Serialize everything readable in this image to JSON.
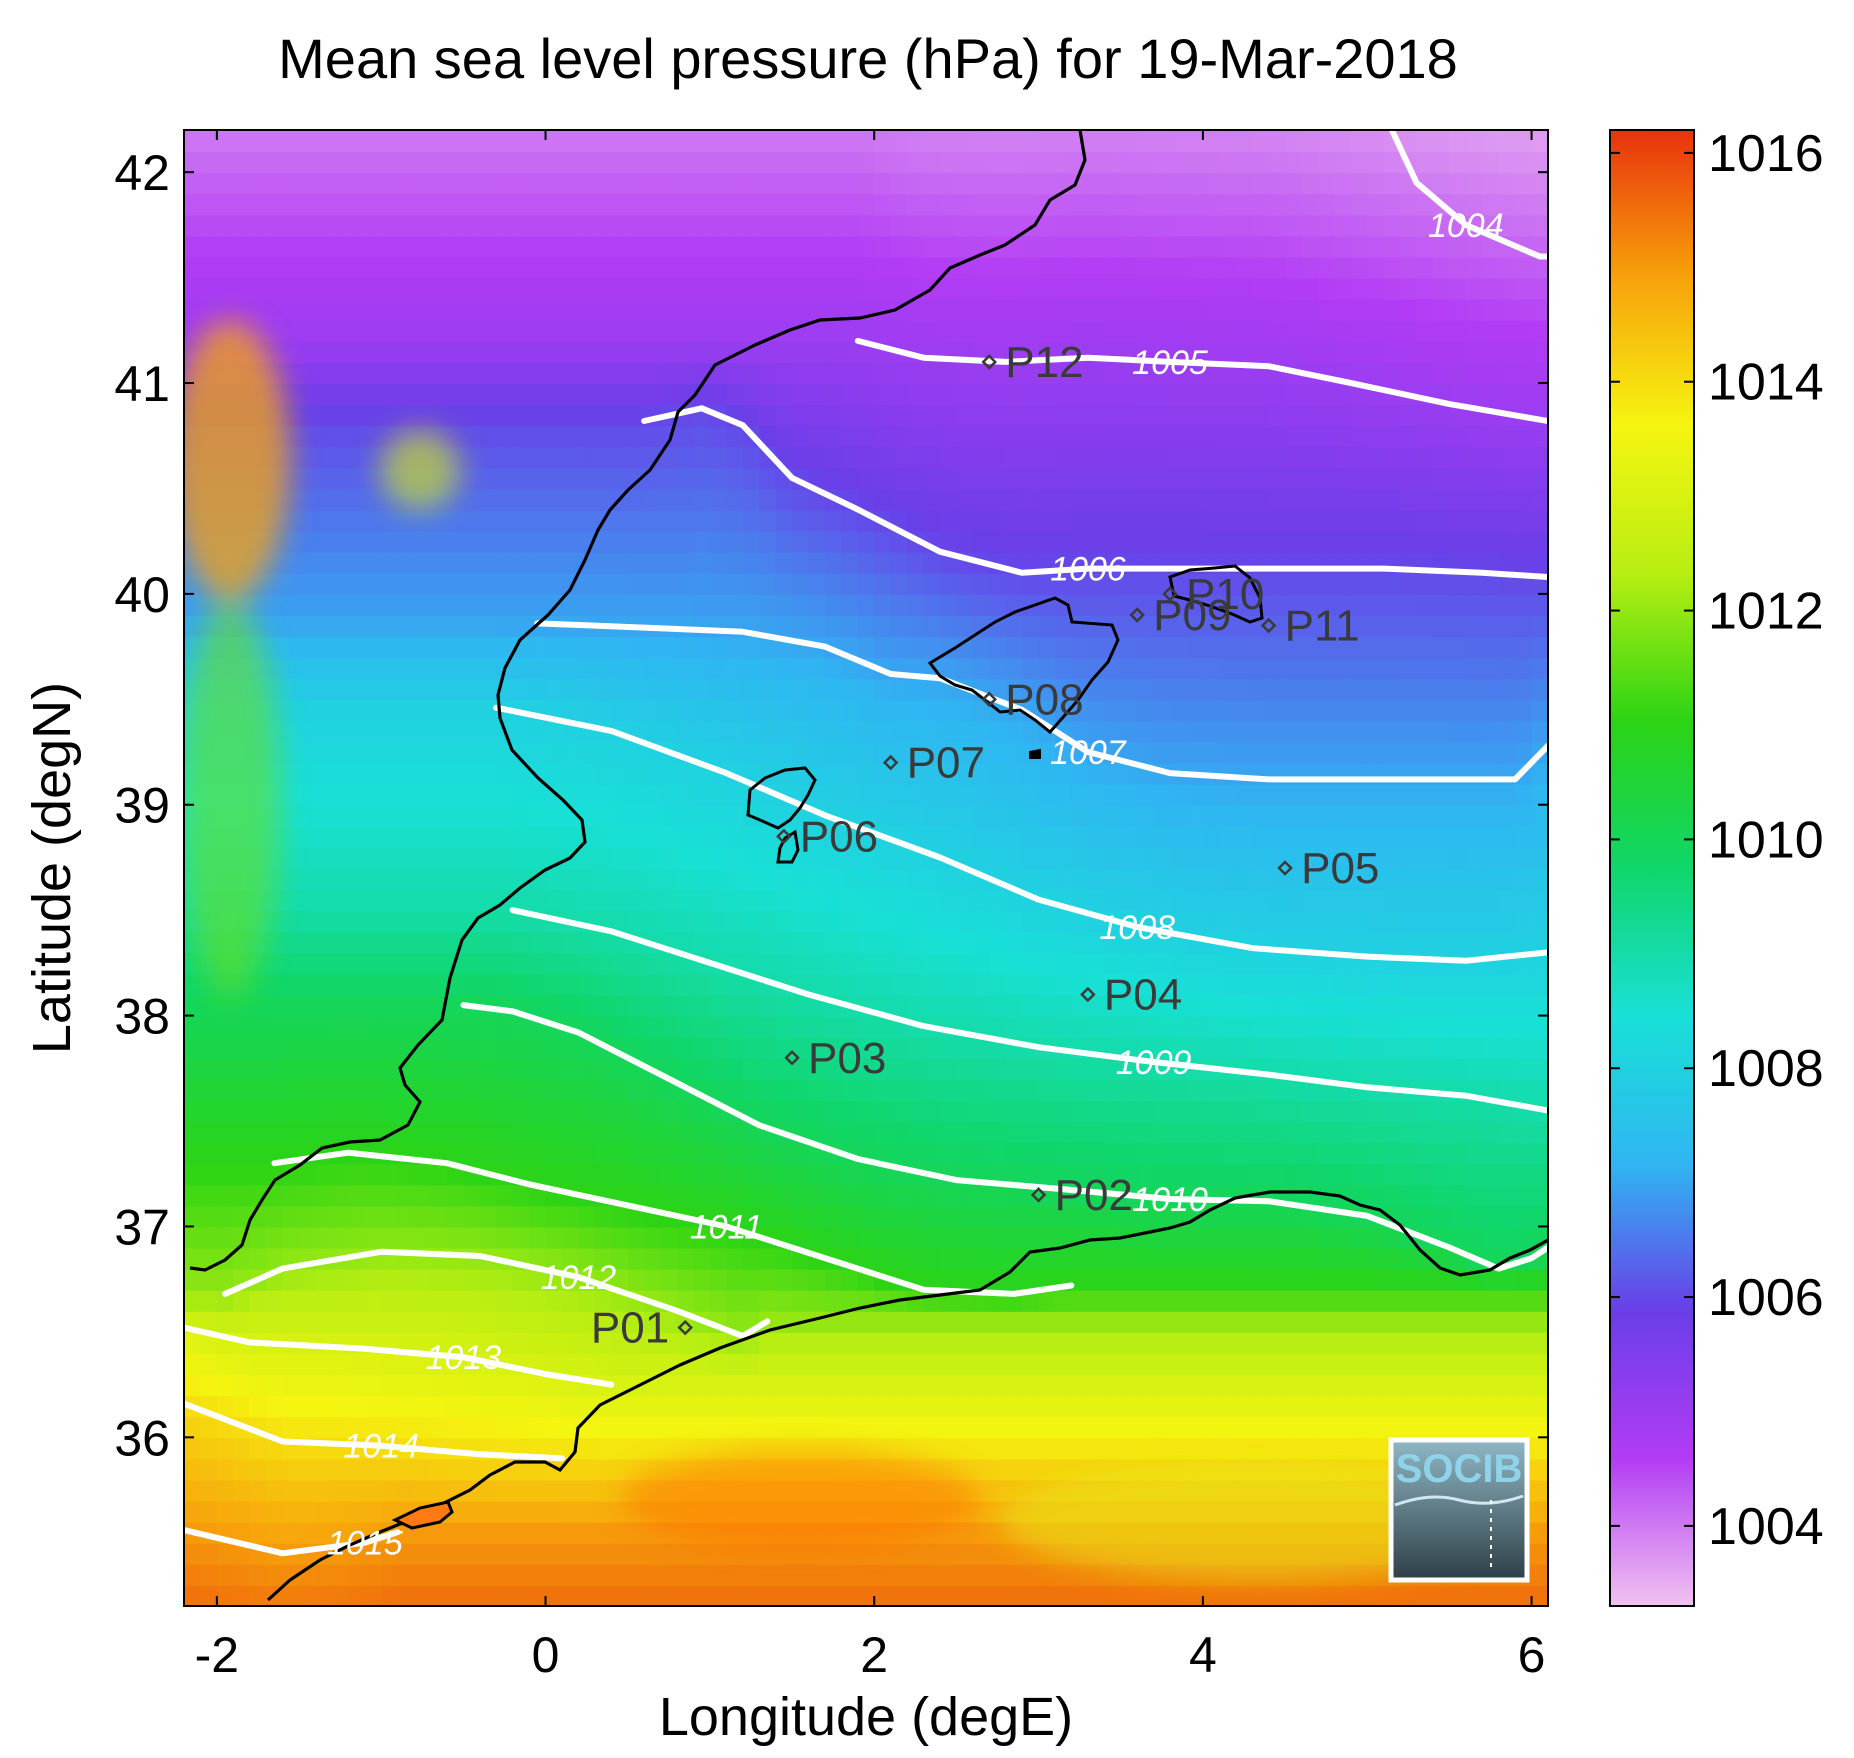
{
  "chart_data": {
    "type": "heatmap",
    "title": "Mean sea level pressure (hPa) for 19-Mar-2018",
    "xlabel": "Longitude (degE)",
    "ylabel": "Latitude (degN)",
    "xlim": [
      -2.2,
      6.1
    ],
    "ylim": [
      35.2,
      42.2
    ],
    "x_ticks": [
      "-2",
      "0",
      "2",
      "4",
      "6"
    ],
    "x_tick_values": [
      -2,
      0,
      2,
      4,
      6
    ],
    "y_ticks": [
      "36",
      "37",
      "38",
      "39",
      "40",
      "41",
      "42"
    ],
    "y_tick_values": [
      36,
      37,
      38,
      39,
      40,
      41,
      42
    ],
    "colorbar": {
      "min": 1003.3,
      "max": 1016.2,
      "ticks": [
        "1004",
        "1006",
        "1008",
        "1010",
        "1012",
        "1014",
        "1016"
      ],
      "tick_values": [
        1004,
        1006,
        1008,
        1010,
        1012,
        1014,
        1016
      ],
      "colormap_stops": [
        "#f0c2f0",
        "#b23cf5",
        "#6a3ee8",
        "#2fb6f2",
        "#18e0d6",
        "#10d66a",
        "#2cd414",
        "#b8ee12",
        "#f5f510",
        "#f7a20b",
        "#e8320c"
      ]
    },
    "contours": [
      {
        "level": 1004,
        "label": "1004",
        "points": [
          [
            5.15,
            42.2
          ],
          [
            5.3,
            41.95
          ],
          [
            5.6,
            41.75
          ],
          [
            6.05,
            41.6
          ],
          [
            6.1,
            41.6
          ]
        ]
      },
      {
        "level": 1005,
        "label": "1005",
        "points": [
          [
            1.9,
            41.2
          ],
          [
            2.3,
            41.12
          ],
          [
            2.8,
            41.1
          ],
          [
            3.3,
            41.12
          ],
          [
            3.8,
            41.1
          ],
          [
            4.4,
            41.08
          ],
          [
            4.9,
            41.0
          ],
          [
            5.5,
            40.9
          ],
          [
            6.1,
            40.82
          ]
        ]
      },
      {
        "level": 1006,
        "label": "1006",
        "points": [
          [
            0.6,
            40.82
          ],
          [
            0.95,
            40.88
          ],
          [
            1.2,
            40.8
          ],
          [
            1.5,
            40.55
          ],
          [
            1.9,
            40.4
          ],
          [
            2.4,
            40.2
          ],
          [
            2.9,
            40.1
          ],
          [
            3.3,
            40.12
          ],
          [
            3.8,
            40.12
          ],
          [
            4.4,
            40.12
          ],
          [
            5.1,
            40.12
          ],
          [
            5.7,
            40.1
          ],
          [
            6.1,
            40.08
          ]
        ]
      },
      {
        "level": 1007,
        "label": "1007",
        "points": [
          [
            -0.05,
            39.86
          ],
          [
            0.6,
            39.84
          ],
          [
            1.2,
            39.82
          ],
          [
            1.7,
            39.75
          ],
          [
            2.1,
            39.62
          ],
          [
            2.4,
            39.6
          ],
          [
            2.9,
            39.45
          ],
          [
            3.3,
            39.25
          ],
          [
            3.8,
            39.15
          ],
          [
            4.4,
            39.12
          ],
          [
            5.0,
            39.12
          ],
          [
            5.6,
            39.12
          ],
          [
            5.9,
            39.12
          ],
          [
            6.1,
            39.28
          ]
        ]
      },
      {
        "level": 1008,
        "label": "1008",
        "points": [
          [
            -0.3,
            39.46
          ],
          [
            0.4,
            39.35
          ],
          [
            1.1,
            39.15
          ],
          [
            1.7,
            38.95
          ],
          [
            2.4,
            38.75
          ],
          [
            3.0,
            38.55
          ],
          [
            3.6,
            38.42
          ],
          [
            4.3,
            38.32
          ],
          [
            5.0,
            38.28
          ],
          [
            5.6,
            38.26
          ],
          [
            6.1,
            38.3
          ]
        ]
      },
      {
        "level": 1009,
        "label": "1009",
        "points": [
          [
            -0.2,
            38.5
          ],
          [
            0.4,
            38.4
          ],
          [
            1.0,
            38.25
          ],
          [
            1.6,
            38.1
          ],
          [
            2.3,
            37.95
          ],
          [
            3.0,
            37.85
          ],
          [
            3.7,
            37.78
          ],
          [
            4.4,
            37.72
          ],
          [
            5.0,
            37.66
          ],
          [
            5.6,
            37.62
          ],
          [
            6.1,
            37.55
          ]
        ]
      },
      {
        "level": 1010,
        "label": "1010",
        "points": [
          [
            -0.5,
            38.05
          ],
          [
            -0.2,
            38.02
          ],
          [
            0.2,
            37.92
          ],
          [
            0.7,
            37.72
          ],
          [
            1.3,
            37.48
          ],
          [
            1.9,
            37.32
          ],
          [
            2.5,
            37.22
          ],
          [
            3.1,
            37.18
          ],
          [
            3.8,
            37.13
          ],
          [
            4.4,
            37.12
          ],
          [
            5.0,
            37.05
          ],
          [
            5.5,
            36.9
          ],
          [
            5.8,
            36.8
          ],
          [
            6.0,
            36.85
          ],
          [
            6.1,
            36.9
          ]
        ]
      },
      {
        "level": 1011,
        "label": "1011",
        "points": [
          [
            -1.65,
            37.3
          ],
          [
            -1.2,
            37.35
          ],
          [
            -0.6,
            37.3
          ],
          [
            -0.1,
            37.2
          ],
          [
            0.5,
            37.1
          ],
          [
            1.1,
            37.0
          ],
          [
            1.7,
            36.85
          ],
          [
            2.3,
            36.7
          ],
          [
            2.85,
            36.68
          ],
          [
            3.2,
            36.72
          ]
        ]
      },
      {
        "level": 1012,
        "label": "1012",
        "points": [
          [
            -1.95,
            36.68
          ],
          [
            -1.6,
            36.8
          ],
          [
            -1.0,
            36.88
          ],
          [
            -0.4,
            36.86
          ],
          [
            0.2,
            36.76
          ],
          [
            0.8,
            36.6
          ],
          [
            1.2,
            36.48
          ],
          [
            1.35,
            36.55
          ]
        ]
      },
      {
        "level": 1013,
        "label": "1013",
        "points": [
          [
            -2.2,
            36.52
          ],
          [
            -1.8,
            36.45
          ],
          [
            -1.1,
            36.42
          ],
          [
            -0.5,
            36.38
          ],
          [
            0.0,
            36.3
          ],
          [
            0.4,
            36.25
          ]
        ]
      },
      {
        "level": 1014,
        "label": "1014",
        "points": [
          [
            -2.2,
            36.16
          ],
          [
            -1.6,
            35.98
          ],
          [
            -1.0,
            35.96
          ],
          [
            -0.4,
            35.92
          ],
          [
            0.1,
            35.9
          ]
        ]
      },
      {
        "level": 1015,
        "label": "1015",
        "points": [
          [
            -2.2,
            35.56
          ],
          [
            -1.6,
            35.45
          ],
          [
            -1.1,
            35.5
          ],
          [
            -0.9,
            35.55
          ]
        ]
      }
    ],
    "coastline_note": "Iberian east coast, North African coast and Balearic Islands drawn as black outlines",
    "points": [
      {
        "label": "P01",
        "lon": 0.85,
        "lat": 36.52
      },
      {
        "label": "P02",
        "lon": 3.0,
        "lat": 37.15
      },
      {
        "label": "P03",
        "lon": 1.5,
        "lat": 37.8
      },
      {
        "label": "P04",
        "lon": 3.3,
        "lat": 38.1
      },
      {
        "label": "P05",
        "lon": 4.5,
        "lat": 38.7
      },
      {
        "label": "P06",
        "lon": 1.45,
        "lat": 38.85
      },
      {
        "label": "P07",
        "lon": 2.1,
        "lat": 39.2
      },
      {
        "label": "P08",
        "lon": 2.7,
        "lat": 39.5
      },
      {
        "label": "P09",
        "lon": 3.6,
        "lat": 39.9
      },
      {
        "label": "P10",
        "lon": 3.8,
        "lat": 40.0
      },
      {
        "label": "P11",
        "lon": 4.4,
        "lat": 39.85
      },
      {
        "label": "P12",
        "lon": 2.7,
        "lat": 41.1
      }
    ]
  },
  "logo": {
    "text": "SOCIB"
  }
}
